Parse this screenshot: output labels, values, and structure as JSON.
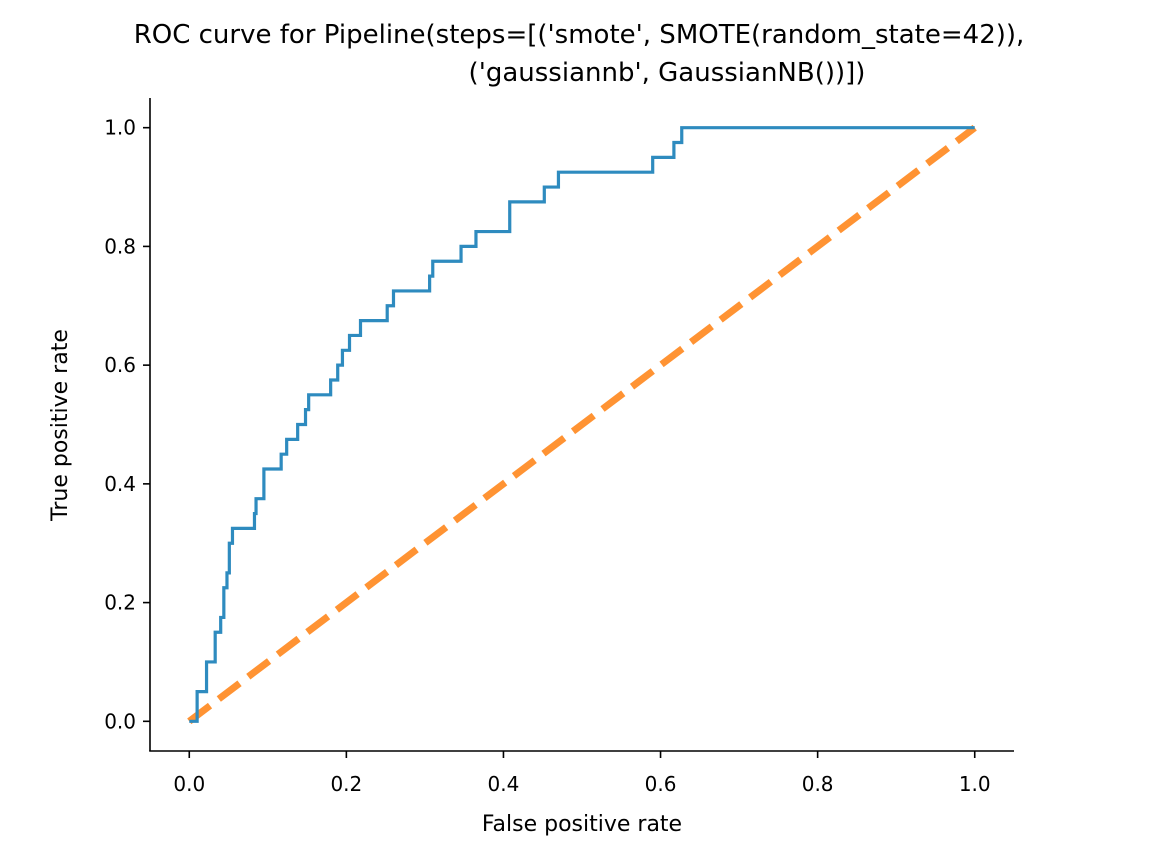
{
  "chart_data": {
    "type": "line",
    "title_lines": [
      "ROC curve for Pipeline(steps=[('smote', SMOTE(random_state=42)),",
      "('gaussiannb', GaussianNB())])"
    ],
    "xlabel": "False positive rate",
    "ylabel": "True positive rate",
    "xlim": [
      -0.05,
      1.05
    ],
    "ylim": [
      -0.05,
      1.05
    ],
    "xticks": [
      0.0,
      0.2,
      0.4,
      0.6,
      0.8,
      1.0
    ],
    "yticks": [
      0.0,
      0.2,
      0.4,
      0.6,
      0.8,
      1.0
    ],
    "xtick_labels": [
      "0.0",
      "0.2",
      "0.4",
      "0.6",
      "0.8",
      "1.0"
    ],
    "ytick_labels": [
      "0.0",
      "0.2",
      "0.4",
      "0.6",
      "0.8",
      "1.0"
    ],
    "grid": false,
    "series": [
      {
        "style": "solid",
        "color": "#2e8bbf",
        "x": [
          0.0,
          0.0,
          0.01,
          0.01,
          0.022,
          0.022,
          0.033,
          0.033,
          0.04,
          0.04,
          0.044,
          0.044,
          0.048,
          0.048,
          0.051,
          0.051,
          0.055,
          0.055,
          0.083,
          0.083,
          0.085,
          0.085,
          0.095,
          0.095,
          0.117,
          0.117,
          0.124,
          0.124,
          0.138,
          0.138,
          0.148,
          0.148,
          0.152,
          0.152,
          0.18,
          0.18,
          0.189,
          0.189,
          0.195,
          0.195,
          0.204,
          0.204,
          0.218,
          0.218,
          0.252,
          0.252,
          0.26,
          0.26,
          0.306,
          0.306,
          0.31,
          0.31,
          0.346,
          0.346,
          0.365,
          0.365,
          0.408,
          0.408,
          0.452,
          0.452,
          0.47,
          0.47,
          0.59,
          0.59,
          0.617,
          0.617,
          0.627,
          0.627,
          1.0
        ],
        "y": [
          0.0,
          0.0,
          0.0,
          0.05,
          0.05,
          0.1,
          0.1,
          0.15,
          0.15,
          0.175,
          0.175,
          0.225,
          0.225,
          0.25,
          0.25,
          0.3,
          0.3,
          0.325,
          0.325,
          0.35,
          0.35,
          0.375,
          0.375,
          0.425,
          0.425,
          0.45,
          0.45,
          0.475,
          0.475,
          0.5,
          0.5,
          0.525,
          0.525,
          0.55,
          0.55,
          0.575,
          0.575,
          0.6,
          0.6,
          0.625,
          0.625,
          0.65,
          0.65,
          0.675,
          0.675,
          0.7,
          0.7,
          0.725,
          0.725,
          0.75,
          0.75,
          0.775,
          0.775,
          0.8,
          0.8,
          0.825,
          0.825,
          0.875,
          0.875,
          0.9,
          0.9,
          0.925,
          0.925,
          0.95,
          0.95,
          0.975,
          0.975,
          1.0,
          1.0
        ]
      },
      {
        "style": "dashed",
        "color": "#ff9333",
        "x": [
          0.0,
          1.0
        ],
        "y": [
          0.0,
          1.0
        ]
      }
    ]
  }
}
